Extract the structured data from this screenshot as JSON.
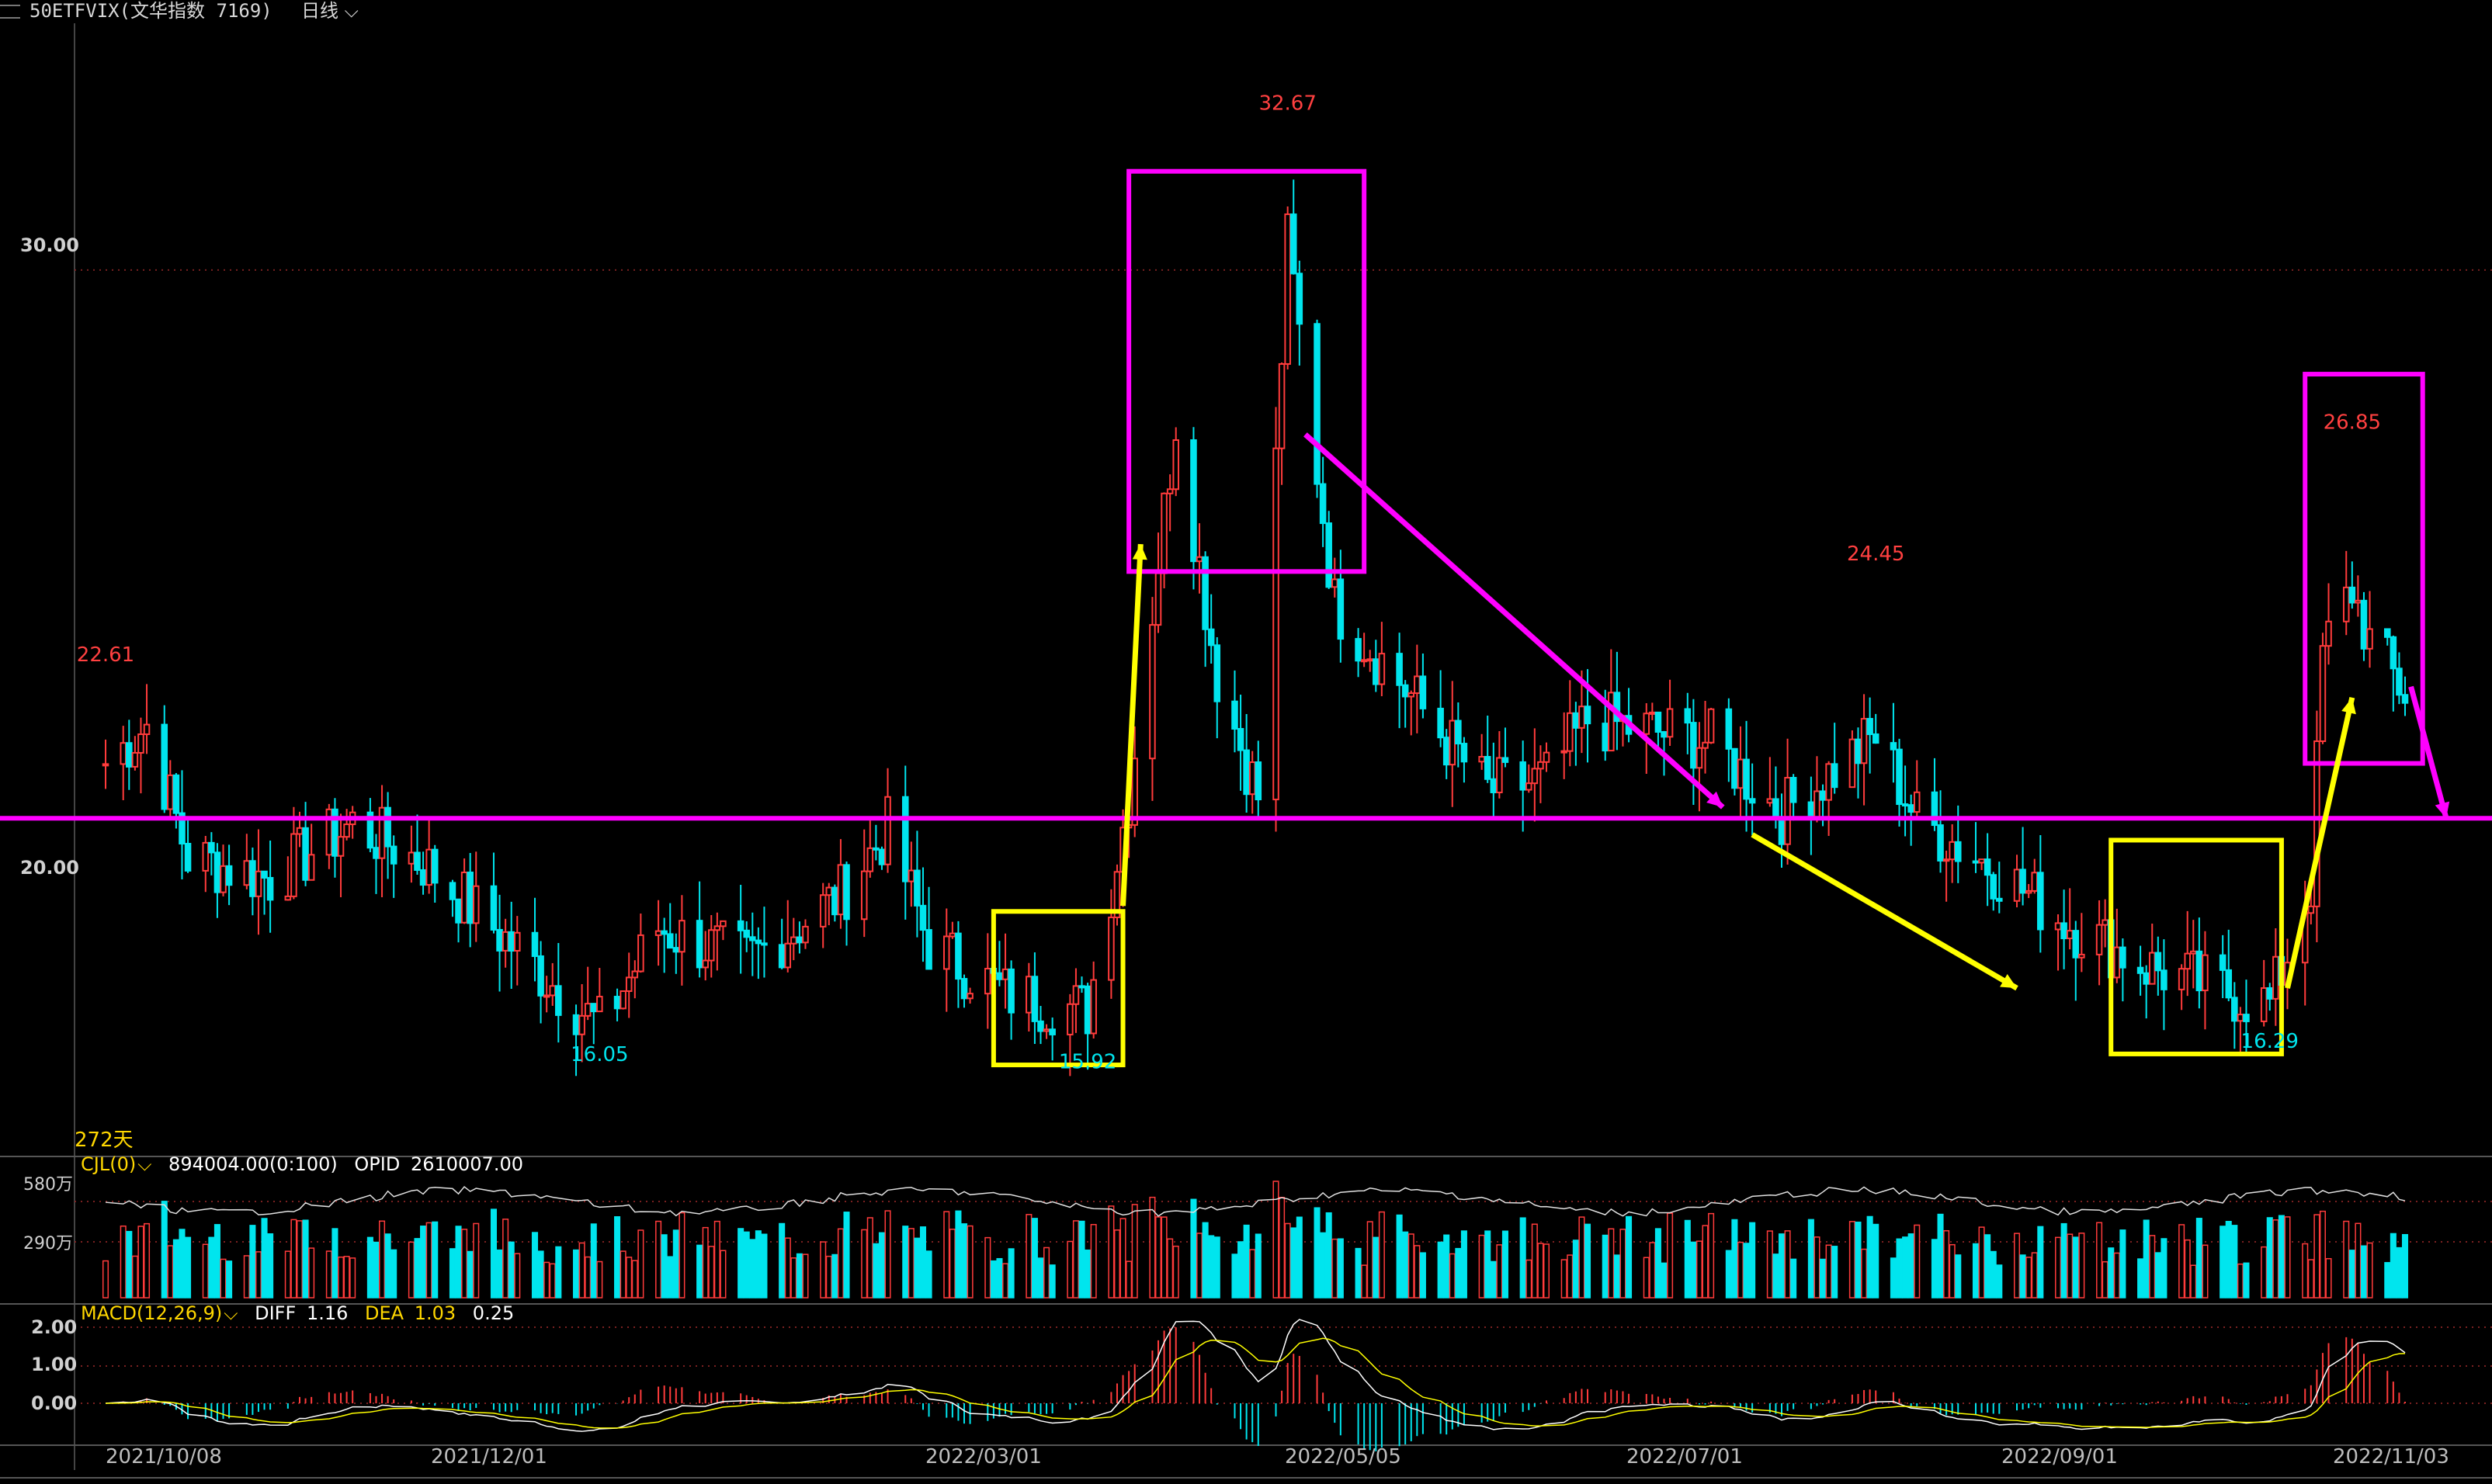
{
  "header": {
    "symbol": "50ETFVIX(文华指数 7169)",
    "period": "日线"
  },
  "price_axis": {
    "labels": [
      "30.00",
      "20.00"
    ]
  },
  "days_label": "272天",
  "volume_panel": {
    "title": "CJL(0)",
    "vol_value": "894004.00(0:100)",
    "opid_label": "OPID",
    "opid_value": "2610007.00",
    "axis_labels": [
      "580万",
      "290万"
    ]
  },
  "macd_panel": {
    "title": "MACD(12,26,9)",
    "diff_label": "DIFF",
    "diff_value": "1.16",
    "dea_label": "DEA",
    "dea_value": "1.03",
    "macd_value": "0.25",
    "axis_labels": [
      "2.00",
      "1.00",
      "0.00"
    ]
  },
  "x_dates": [
    "2021/10/08",
    "2021/12/01",
    "2022/03/01",
    "2022/05/05",
    "2022/07/01",
    "2022/09/01",
    "2022/11/03"
  ],
  "colors": {
    "up": "#ff3b3b",
    "down": "#00e5ee",
    "hline": "#ff00ff",
    "box_magenta": "#ff00ff",
    "box_yellow": "#ffff00",
    "dea": "#ffff00",
    "diff": "#ffffff"
  },
  "chart_data": {
    "type": "candlestick",
    "x_range": [
      "2021/10/08",
      "2022/11/03"
    ],
    "y_range": [
      14.0,
      34.5
    ],
    "horizontal_line": 20.0,
    "annotations": [
      {
        "date": "2021/10/08",
        "text": "22.61",
        "kind": "high"
      },
      {
        "date": "2021/12/31",
        "text": "16.05",
        "kind": "low"
      },
      {
        "date": "2022/03/24",
        "text": "15.92",
        "kind": "low"
      },
      {
        "date": "2022/04/27",
        "text": "32.67",
        "kind": "high"
      },
      {
        "date": "2022/08/05",
        "text": "24.45",
        "kind": "high"
      },
      {
        "date": "2022/10/11",
        "text": "16.29",
        "kind": "low"
      },
      {
        "date": "2022/10/25",
        "text": "26.85",
        "kind": "high"
      }
    ],
    "anchors": [
      [
        "2021/10/08",
        21.0
      ],
      [
        "2021/10/15",
        21.7
      ],
      [
        "2021/10/22",
        19.3
      ],
      [
        "2021/11/05",
        18.9
      ],
      [
        "2021/11/19",
        19.9
      ],
      [
        "2021/12/01",
        19.2
      ],
      [
        "2021/12/15",
        17.8
      ],
      [
        "2021/12/31",
        16.2
      ],
      [
        "2022/01/10",
        18.0
      ],
      [
        "2022/01/25",
        17.4
      ],
      [
        "2022/02/10",
        18.6
      ],
      [
        "2022/02/18",
        19.8
      ],
      [
        "2022/02/25",
        17.7
      ],
      [
        "2022/03/10",
        16.8
      ],
      [
        "2022/03/24",
        16.5
      ],
      [
        "2022/03/31",
        20.4
      ],
      [
        "2022/04/08",
        27.3
      ],
      [
        "2022/04/15",
        22.6
      ],
      [
        "2022/04/22",
        20.4
      ],
      [
        "2022/04/27",
        30.5
      ],
      [
        "2022/05/05",
        23.9
      ],
      [
        "2022/05/16",
        22.5
      ],
      [
        "2022/05/31",
        20.5
      ],
      [
        "2022/06/10",
        20.7
      ],
      [
        "2022/06/17",
        21.8
      ],
      [
        "2022/07/08",
        21.4
      ],
      [
        "2022/07/20",
        20.1
      ],
      [
        "2022/08/05",
        21.5
      ],
      [
        "2022/08/12",
        20.0
      ],
      [
        "2022/08/25",
        19.1
      ],
      [
        "2022/09/05",
        18.2
      ],
      [
        "2022/09/20",
        17.3
      ],
      [
        "2022/10/11",
        16.6
      ],
      [
        "2022/10/18",
        18.8
      ],
      [
        "2022/10/20",
        23.0
      ],
      [
        "2022/10/25",
        24.2
      ],
      [
        "2022/10/28",
        23.2
      ],
      [
        "2022/11/03",
        22.3
      ]
    ],
    "boxes": [
      {
        "color": "magenta",
        "from": "2022/03/31",
        "to": "2022/05/10",
        "y_top": 31.8,
        "y_bottom": 24.5
      },
      {
        "color": "yellow",
        "from": "2022/03/08",
        "to": "2022/03/30",
        "y_top": 18.3,
        "y_bottom": 15.5
      },
      {
        "color": "yellow",
        "from": "2022/09/14",
        "to": "2022/10/13",
        "y_top": 19.6,
        "y_bottom": 15.7
      },
      {
        "color": "magenta",
        "from": "2022/10/17",
        "to": "2022/11/06",
        "y_top": 28.1,
        "y_bottom": 21.0
      }
    ],
    "arrows": [
      {
        "color": "yellow",
        "from": [
          "2022/03/30",
          18.4
        ],
        "to": [
          "2022/04/02",
          25.0
        ]
      },
      {
        "color": "magenta",
        "from": [
          "2022/04/30",
          27.0
        ],
        "to": [
          "2022/07/10",
          20.2
        ]
      },
      {
        "color": "yellow",
        "from": [
          "2022/07/15",
          19.7
        ],
        "to": [
          "2022/08/29",
          16.9
        ]
      },
      {
        "color": "yellow",
        "from": [
          "2022/10/14",
          16.9
        ],
        "to": [
          "2022/10/25",
          22.2
        ]
      },
      {
        "color": "magenta",
        "from": [
          "2022/11/04",
          22.4
        ],
        "to": [
          "2022/11/10",
          20.0
        ]
      }
    ]
  }
}
